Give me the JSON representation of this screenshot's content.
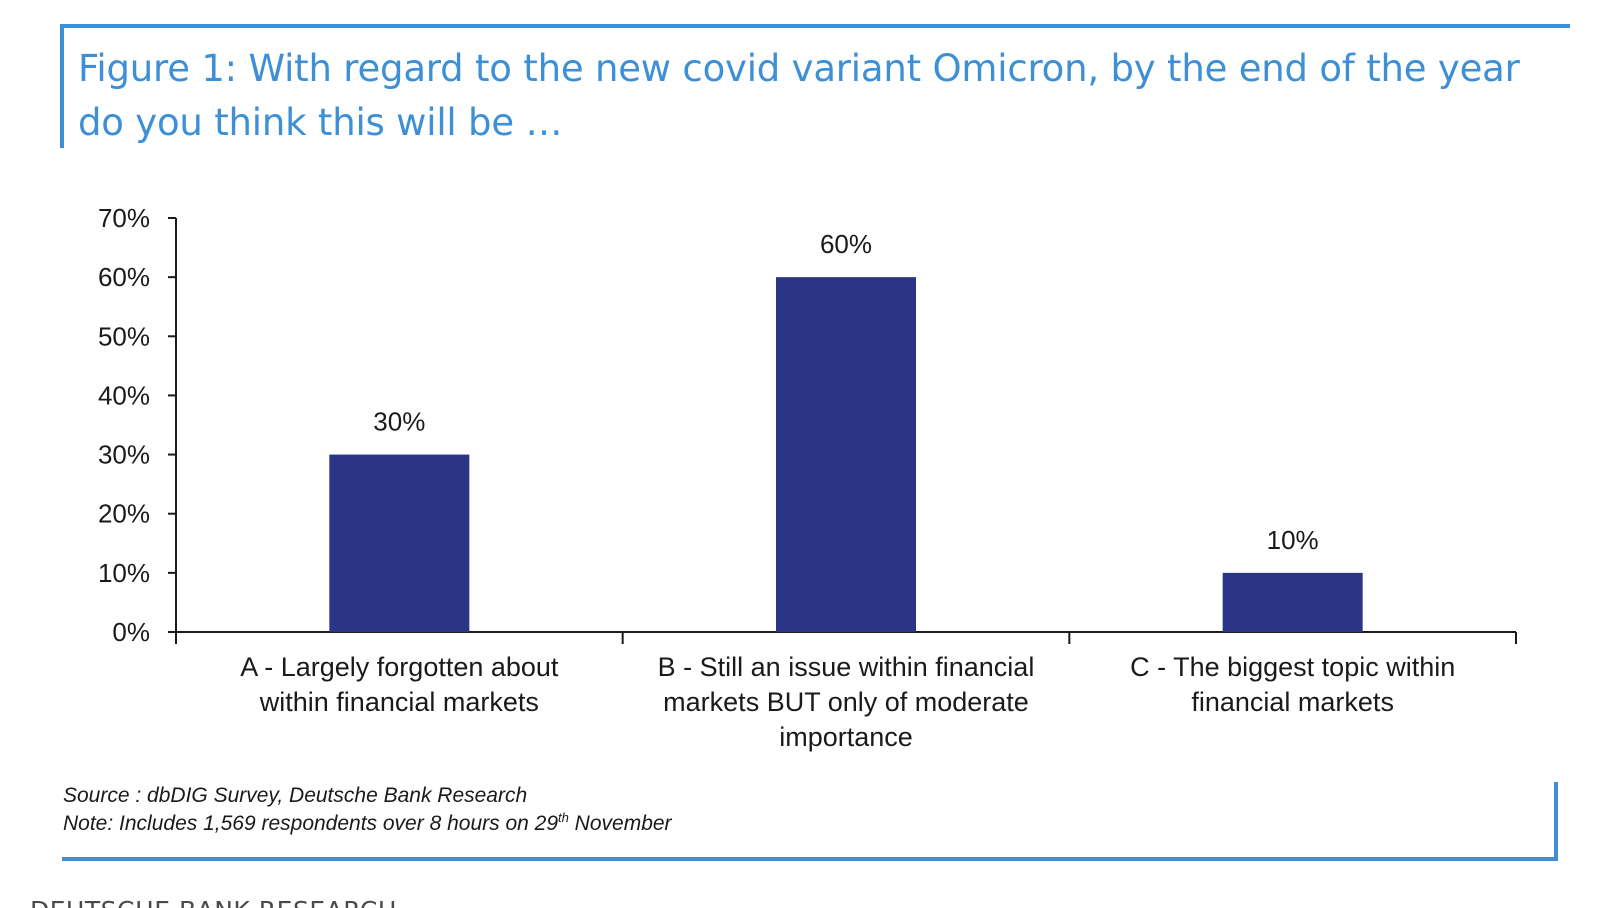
{
  "figure": {
    "title": "Figure 1: With regard to the new covid variant Omicron, by the end of the year do you think this will be …"
  },
  "chart_data": {
    "type": "bar",
    "title": "Figure 1: With regard to the new covid variant Omicron, by the end of the year do you think this will be …",
    "xlabel": "",
    "ylabel": "",
    "ylim": [
      0,
      70
    ],
    "yticks": [
      0,
      10,
      20,
      30,
      40,
      50,
      60,
      70
    ],
    "ytick_labels": [
      "0%",
      "10%",
      "20%",
      "30%",
      "40%",
      "50%",
      "60%",
      "70%"
    ],
    "categories": [
      [
        "A - Largely forgotten about",
        "within financial markets"
      ],
      [
        "B - Still an issue within financial",
        "markets BUT only of moderate",
        "importance"
      ],
      [
        "C - The biggest topic within",
        "financial markets"
      ]
    ],
    "values": [
      30,
      60,
      10
    ],
    "data_labels": [
      "30%",
      "60%",
      "10%"
    ],
    "bar_color": "#2b3587",
    "grid": false,
    "legend": "none"
  },
  "footer": {
    "source": "Source : dbDIG Survey, Deutsche Bank Research",
    "note_prefix": "Note: Includes 1,569 respondents over 8 hours on 29",
    "note_sup": "th",
    "note_suffix": " November",
    "brand": "DEUTSCHE BANK RESEARCH"
  },
  "colors": {
    "accent": "#3d8fd6",
    "bar": "#2b3587",
    "text": "#1a1a1a"
  }
}
